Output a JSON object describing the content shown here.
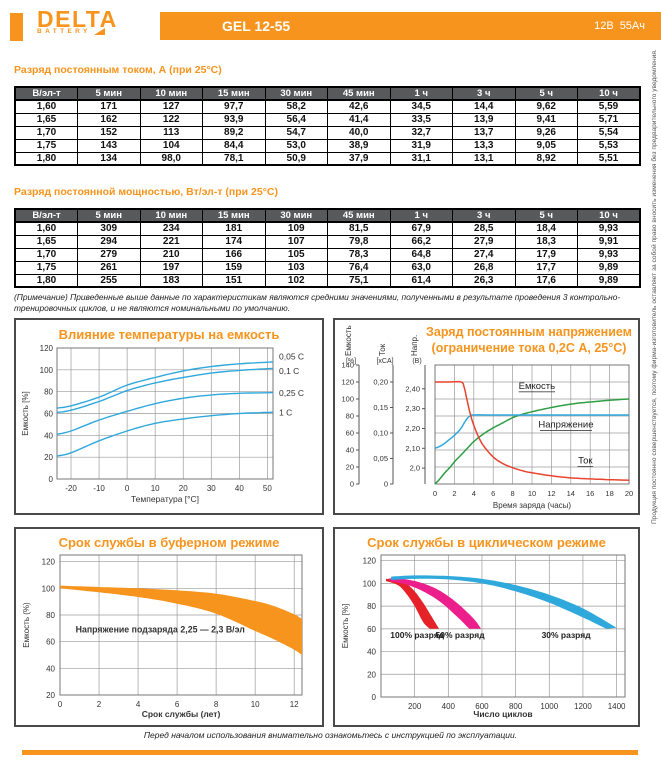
{
  "header": {
    "brand": "DELTA",
    "brand_sub": "BATTERY",
    "model": "GEL 12-55",
    "voltage": "12В",
    "capacity": "55Ач"
  },
  "colors": {
    "orange": "#F7941D",
    "table_header_bg": "#58595B",
    "cyan": "#2FA8DC",
    "green": "#2E9E44",
    "red": "#E8432E",
    "pink": "#EC1E8C",
    "dark_red": "#E42228"
  },
  "tables": [
    {
      "title": "Разряд постоянным током, А (при 25°С)",
      "headers": [
        "В/эл-т",
        "5 мин",
        "10 мин",
        "15 мин",
        "30 мин",
        "45 мин",
        "1 ч",
        "3 ч",
        "5 ч",
        "10 ч"
      ],
      "rows": [
        [
          "1,60",
          "171",
          "127",
          "97,7",
          "58,2",
          "42,6",
          "34,5",
          "14,4",
          "9,62",
          "5,59"
        ],
        [
          "1,65",
          "162",
          "122",
          "93,9",
          "56,4",
          "41,4",
          "33,5",
          "13,9",
          "9,41",
          "5,71"
        ],
        [
          "1,70",
          "152",
          "113",
          "89,2",
          "54,7",
          "40,0",
          "32,7",
          "13,7",
          "9,26",
          "5,54"
        ],
        [
          "1,75",
          "143",
          "104",
          "84,4",
          "53,0",
          "38,9",
          "31,9",
          "13,3",
          "9,05",
          "5,53"
        ],
        [
          "1,80",
          "134",
          "98,0",
          "78,1",
          "50,9",
          "37,9",
          "31,1",
          "13,1",
          "8,92",
          "5,51"
        ]
      ]
    },
    {
      "title": "Разряд постоянной мощностью, Вт/эл-т (при 25°С)",
      "headers": [
        "В/эл-т",
        "5 мин",
        "10 мин",
        "15 мин",
        "30 мин",
        "45 мин",
        "1 ч",
        "3 ч",
        "5 ч",
        "10 ч"
      ],
      "rows": [
        [
          "1,60",
          "309",
          "234",
          "181",
          "109",
          "81,5",
          "67,9",
          "28,5",
          "18,4",
          "9,93"
        ],
        [
          "1,65",
          "294",
          "221",
          "174",
          "107",
          "79,8",
          "66,2",
          "27,9",
          "18,3",
          "9,91"
        ],
        [
          "1,70",
          "279",
          "210",
          "166",
          "105",
          "78,3",
          "64,8",
          "27,4",
          "17,9",
          "9,93"
        ],
        [
          "1,75",
          "261",
          "197",
          "159",
          "103",
          "76,4",
          "63,0",
          "26,8",
          "17,7",
          "9,89"
        ],
        [
          "1,80",
          "255",
          "183",
          "151",
          "102",
          "75,1",
          "61,4",
          "26,3",
          "17,6",
          "9,89"
        ]
      ]
    }
  ],
  "note": "(Примечание) Приведенные выше данные по характеристикам являются средними значениями, полученными в результате проведения 3 контрольно-тренировочных циклов, и не являются номинальными по умолчанию.",
  "footer_note": "Перед началом использования внимательно ознакомьтесь с инструкцией по эксплуатации.",
  "side_note": "Продукция постоянно совершенствуется, поэтому фирма-изготовитель оставляет за собой право вносить изменения без предварительного уведомления.",
  "chart_data": [
    {
      "type": "line",
      "title": "Влияние температуры на емкость",
      "xlabel": "Температура [°C]",
      "ylabel": "Емкость [%]",
      "xlim": [
        -25,
        52
      ],
      "ylim": [
        0,
        120
      ],
      "xticks": [
        -20,
        -10,
        0,
        10,
        20,
        30,
        40,
        50
      ],
      "yticks": [
        0,
        20,
        40,
        60,
        80,
        100,
        120
      ],
      "line_color": "#2FA8DC",
      "label_y": [
        112,
        99,
        79,
        61
      ],
      "series": [
        {
          "name": "0,05 C",
          "x": [
            -25,
            -20,
            -10,
            0,
            10,
            20,
            30,
            40,
            50,
            52
          ],
          "y": [
            65,
            67,
            75,
            86,
            93,
            99,
            103,
            105.5,
            107,
            107.2
          ]
        },
        {
          "name": "0,1 C",
          "x": [
            -25,
            -20,
            -10,
            0,
            10,
            20,
            30,
            40,
            50,
            52
          ],
          "y": [
            61,
            63,
            71,
            81,
            88,
            93,
            97,
            99.5,
            101,
            101.2
          ]
        },
        {
          "name": "0,25 C",
          "x": [
            -25,
            -20,
            -10,
            0,
            10,
            20,
            30,
            40,
            50,
            52
          ],
          "y": [
            41,
            44,
            54,
            62,
            69,
            74,
            77,
            78.5,
            79,
            79.2
          ]
        },
        {
          "name": "1 C",
          "x": [
            -25,
            -20,
            -10,
            0,
            10,
            20,
            30,
            40,
            50,
            52
          ],
          "y": [
            21,
            24,
            35,
            44,
            51,
            55,
            58,
            60,
            61,
            61.2
          ]
        }
      ]
    },
    {
      "type": "line-multiaxis",
      "title": "Заряд постоянным напряжением",
      "subtitle": "(ограничение тока 0,2С А, 25°C)",
      "xlabel": "Время заряда (часы)",
      "xlim": [
        0,
        20
      ],
      "xticks": [
        0,
        2,
        4,
        6,
        8,
        10,
        12,
        14,
        16,
        18,
        20
      ],
      "axes": [
        {
          "name": "Емкость",
          "unit": "[%]",
          "range": [
            0,
            140
          ],
          "tick_values": [
            0,
            20,
            40,
            60,
            80,
            100,
            120,
            140
          ],
          "tick_labels": [
            "0",
            "20",
            "40",
            "60",
            "80",
            "100",
            "120",
            "140"
          ]
        },
        {
          "name": "Ток",
          "unit": "[xCA]",
          "range": [
            0,
            0.2333
          ],
          "tick_values": [
            0,
            0.05,
            0.1,
            0.15,
            0.2
          ],
          "tick_labels": [
            "0",
            "0,05",
            "0,10",
            "0,15",
            "0,20"
          ]
        },
        {
          "name": "Напр.",
          "unit": "(B)",
          "range": [
            1.92,
            2.52
          ],
          "tick_values": [
            2.0,
            2.1,
            2.2,
            2.3,
            2.4
          ],
          "tick_labels": [
            "2,0",
            "2,10",
            "2,20",
            "2,30",
            "2,40"
          ]
        }
      ],
      "series": [
        {
          "name": "Емкость",
          "axis": 0,
          "color": "#2E9E44",
          "label_xy": [
            10.5,
            112
          ],
          "x": [
            0,
            0.5,
            1,
            1.5,
            2,
            2.5,
            3,
            3.5,
            4,
            5,
            6,
            7,
            8,
            9,
            10,
            12,
            14,
            16,
            18,
            20
          ],
          "y": [
            0,
            6,
            13,
            19,
            26,
            32,
            38,
            44,
            50,
            59,
            66,
            72,
            78,
            82,
            85,
            90,
            94,
            96.5,
            98.5,
            100
          ]
        },
        {
          "name": "Напряжение",
          "axis": 2,
          "color": "#2FA8DC",
          "label_xy": [
            13.5,
            2.205
          ],
          "x": [
            0,
            0.5,
            1,
            1.5,
            2,
            2.5,
            2.8,
            3.1,
            3.4,
            3.7,
            4,
            6,
            10,
            15,
            20
          ],
          "y": [
            2.1,
            2.11,
            2.125,
            2.145,
            2.165,
            2.19,
            2.21,
            2.235,
            2.255,
            2.265,
            2.268,
            2.268,
            2.268,
            2.268,
            2.268
          ]
        },
        {
          "name": "Ток",
          "axis": 1,
          "color": "#E8432E",
          "label_xy": [
            15.5,
            0.04
          ],
          "x": [
            0,
            1.5,
            2.7,
            3.0,
            3.3,
            3.6,
            4,
            4.5,
            5,
            6,
            7,
            8,
            9,
            10,
            12,
            14,
            16,
            18,
            20
          ],
          "y": [
            0.2,
            0.2,
            0.2,
            0.19,
            0.165,
            0.14,
            0.115,
            0.092,
            0.075,
            0.053,
            0.04,
            0.032,
            0.026,
            0.022,
            0.016,
            0.012,
            0.01,
            0.0085,
            0.0075
          ]
        }
      ]
    },
    {
      "type": "band",
      "title": "Срок службы в буферном режиме",
      "xlabel": "Срок службы (лет)",
      "ylabel": "Емкость (%)",
      "xlim": [
        0,
        12.4
      ],
      "ylim": [
        20,
        125
      ],
      "xticks": [
        0,
        2,
        4,
        6,
        8,
        10,
        12
      ],
      "yticks": [
        20,
        40,
        60,
        80,
        100,
        120
      ],
      "annotation": {
        "text": "Напряжение подзаряда 2,25 — 2,3 В/эл",
        "x": 0.8,
        "y": 67
      },
      "band": {
        "color": "#F7941D",
        "upper": {
          "x": [
            0,
            2,
            4,
            6,
            8,
            10,
            11,
            12,
            12.4
          ],
          "y": [
            102,
            101,
            100,
            98.5,
            96,
            90.5,
            86.5,
            80.5,
            77
          ]
        },
        "lower": {
          "x": [
            0,
            2,
            4,
            6,
            8,
            10,
            11,
            12,
            12.4
          ],
          "y": [
            100,
            97,
            93.5,
            88.5,
            81,
            68,
            61.5,
            54,
            50
          ]
        }
      }
    },
    {
      "type": "multi-band",
      "title": "Срок службы в циклическом режиме",
      "xlabel": "Число циклов",
      "ylabel": "Емкость [%]",
      "xlim": [
        0,
        1450
      ],
      "ylim": [
        0,
        125
      ],
      "xticks": [
        200,
        400,
        600,
        800,
        1000,
        1200,
        1400
      ],
      "yticks": [
        0,
        20,
        40,
        60,
        80,
        100,
        120
      ],
      "bands": [
        {
          "label": "100% разряд",
          "color": "#E42228",
          "upper": {
            "x": [
              30,
              100,
              150,
              200,
              250,
              300,
              345
            ],
            "y": [
              104,
              103.5,
              100,
              93,
              83,
              71,
              60
            ]
          },
          "lower": {
            "x": [
              30,
              100,
              150,
              200,
              250,
              290
            ],
            "y": [
              102,
              98.5,
              91,
              80,
              66,
              60
            ]
          }
        },
        {
          "label": "50% разряд",
          "color": "#EC1E8C",
          "upper": {
            "x": [
              50,
              150,
              250,
              350,
              450,
              550,
              595
            ],
            "y": [
              104.5,
              103.5,
              100,
              93.5,
              83,
              69,
              60
            ]
          },
          "lower": {
            "x": [
              50,
              150,
              250,
              350,
              450,
              525
            ],
            "y": [
              102,
              99,
              93,
              84,
              71,
              60
            ]
          }
        },
        {
          "label": "30% разряд",
          "color": "#2FA8DC",
          "upper": {
            "x": [
              60,
              200,
              400,
              600,
              800,
              1000,
              1200,
              1400
            ],
            "y": [
              106,
              107,
              106.5,
              104,
              98.5,
              90,
              78,
              61
            ]
          },
          "lower": {
            "x": [
              60,
              200,
              400,
              600,
              800,
              1000,
              1200,
              1340
            ],
            "y": [
              103,
              104,
              103.5,
              100,
              93,
              83,
              70,
              60
            ]
          }
        }
      ],
      "labels": [
        {
          "text": "100% разряд",
          "x": 215,
          "y": 52
        },
        {
          "text": "50% разряд",
          "x": 470,
          "y": 52
        },
        {
          "text": "30% разряд",
          "x": 1100,
          "y": 52
        }
      ]
    }
  ]
}
